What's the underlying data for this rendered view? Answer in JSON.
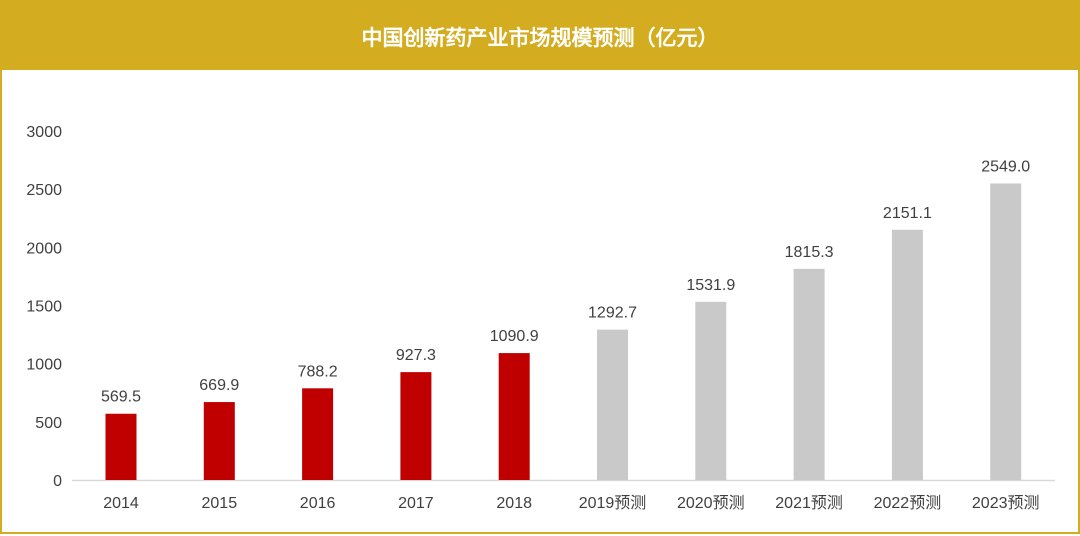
{
  "chart_data": {
    "type": "bar",
    "title": "中国创新药产业市场规模预测（亿元）",
    "categories": [
      "2014",
      "2015",
      "2016",
      "2017",
      "2018",
      "2019预测",
      "2020预测",
      "2021预测",
      "2022预测",
      "2023预测"
    ],
    "values": [
      569.5,
      669.9,
      788.2,
      927.3,
      1090.9,
      1292.7,
      1531.9,
      1815.3,
      2151.1,
      2549.0
    ],
    "labels": [
      "569.5",
      "669.9",
      "788.2",
      "927.3",
      "1090.9",
      "1292.7",
      "1531.9",
      "1815.3",
      "2151.1",
      "2549.0"
    ],
    "actual_color": "#c00000",
    "forecast_color": "#c9c9c9",
    "forecast_from_index": 5,
    "ylim": [
      0,
      3000
    ],
    "yticks": [
      0,
      500,
      1000,
      1500,
      2000,
      2500,
      3000
    ],
    "xlabel": "",
    "ylabel": "",
    "grid": false,
    "legend": "none"
  }
}
